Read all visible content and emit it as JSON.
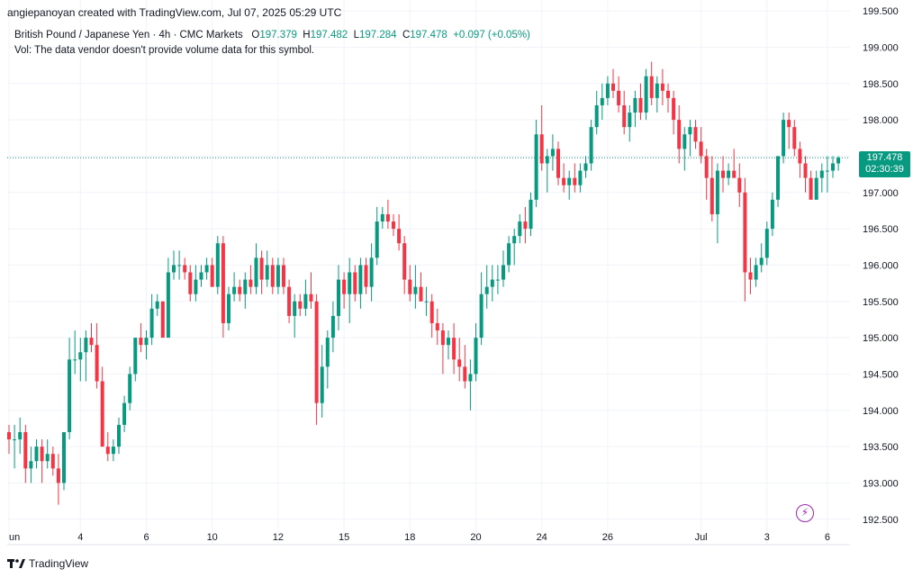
{
  "header": "angiepanoyan created with TradingView.com, Jul 07, 2025 05:29 UTC",
  "legend": {
    "symbol": "British Pound / Japanese Yen · 4h · CMC Markets",
    "open_label": "O",
    "open": "197.379",
    "high_label": "H",
    "high": "197.482",
    "low_label": "L",
    "low": "197.284",
    "close_label": "C",
    "close": "197.478",
    "change": "+0.097 (+0.05%)",
    "volume_note": "Vol: The data vendor doesn't provide volume data for this symbol."
  },
  "last_price": {
    "value": "197.478",
    "countdown": "02:30:39"
  },
  "brand": "TradingView",
  "colors": {
    "up": "#089981",
    "down": "#F23645",
    "grid": "#F0F3FA",
    "axis_text": "#131722"
  },
  "chart_data": {
    "type": "candlestick",
    "ylim": [
      192.15,
      199.65
    ],
    "y_ticks": [
      "192.500",
      "193.000",
      "193.500",
      "194.000",
      "194.500",
      "195.000",
      "195.500",
      "196.000",
      "196.500",
      "197.000",
      "197.500",
      "198.000",
      "198.500",
      "199.000",
      "199.500"
    ],
    "x_ticks": [
      {
        "label": "un",
        "i": 0
      },
      {
        "label": "4",
        "i": 13
      },
      {
        "label": "6",
        "i": 25
      },
      {
        "label": "10",
        "i": 37
      },
      {
        "label": "12",
        "i": 49
      },
      {
        "label": "15",
        "i": 61
      },
      {
        "label": "18",
        "i": 73
      },
      {
        "label": "20",
        "i": 85
      },
      {
        "label": "24",
        "i": 97
      },
      {
        "label": "26",
        "i": 109
      },
      {
        "label": "Jul",
        "i": 126
      },
      {
        "label": "3",
        "i": 138
      },
      {
        "label": "6",
        "i": 149
      }
    ],
    "ohlc": [
      [
        193.7,
        193.8,
        193.4,
        193.6
      ],
      [
        193.6,
        193.8,
        193.2,
        193.6
      ],
      [
        193.6,
        193.9,
        193.4,
        193.7
      ],
      [
        193.7,
        193.8,
        193.0,
        193.2
      ],
      [
        193.2,
        193.5,
        193.0,
        193.3
      ],
      [
        193.3,
        193.6,
        193.2,
        193.5
      ],
      [
        193.5,
        193.6,
        193.0,
        193.3
      ],
      [
        193.3,
        193.6,
        193.2,
        193.4
      ],
      [
        193.4,
        193.5,
        193.1,
        193.2
      ],
      [
        193.2,
        193.4,
        192.7,
        193.0
      ],
      [
        193.0,
        193.7,
        192.9,
        193.7
      ],
      [
        193.7,
        195.0,
        193.6,
        194.7
      ],
      [
        194.7,
        195.1,
        194.5,
        194.7
      ],
      [
        194.7,
        195.0,
        194.4,
        194.8
      ],
      [
        194.8,
        195.1,
        194.4,
        195.0
      ],
      [
        195.0,
        195.2,
        194.8,
        194.9
      ],
      [
        194.9,
        195.2,
        194.3,
        194.4
      ],
      [
        194.4,
        194.6,
        193.5,
        193.5
      ],
      [
        193.5,
        193.7,
        193.3,
        193.4
      ],
      [
        193.4,
        193.6,
        193.3,
        193.5
      ],
      [
        193.5,
        193.9,
        193.4,
        193.8
      ],
      [
        193.8,
        194.2,
        193.7,
        194.1
      ],
      [
        194.1,
        194.6,
        194.0,
        194.5
      ],
      [
        194.5,
        195.0,
        194.4,
        195.0
      ],
      [
        195.0,
        195.2,
        194.8,
        194.9
      ],
      [
        194.9,
        195.1,
        194.7,
        195.0
      ],
      [
        195.0,
        195.6,
        194.9,
        195.4
      ],
      [
        195.4,
        195.6,
        195.3,
        195.5
      ],
      [
        195.5,
        195.5,
        195.0,
        195.0
      ],
      [
        195.0,
        196.1,
        195.0,
        195.9
      ],
      [
        195.9,
        196.2,
        195.8,
        196.0
      ],
      [
        196.0,
        196.2,
        195.8,
        196.0
      ],
      [
        196.0,
        196.1,
        195.8,
        195.9
      ],
      [
        195.9,
        196.0,
        195.5,
        195.6
      ],
      [
        195.6,
        196.0,
        195.5,
        195.8
      ],
      [
        195.8,
        196.0,
        195.7,
        195.9
      ],
      [
        195.9,
        196.1,
        195.8,
        196.0
      ],
      [
        196.0,
        196.1,
        195.7,
        195.7
      ],
      [
        195.7,
        196.4,
        195.6,
        196.3
      ],
      [
        196.3,
        196.4,
        195.0,
        195.2
      ],
      [
        195.2,
        195.7,
        195.1,
        195.6
      ],
      [
        195.6,
        195.9,
        195.5,
        195.7
      ],
      [
        195.7,
        195.8,
        195.5,
        195.6
      ],
      [
        195.6,
        195.9,
        195.4,
        195.8
      ],
      [
        195.8,
        196.0,
        195.6,
        195.7
      ],
      [
        195.7,
        196.3,
        195.6,
        196.1
      ],
      [
        196.1,
        196.2,
        195.6,
        195.8
      ],
      [
        195.8,
        196.2,
        195.7,
        196.0
      ],
      [
        196.0,
        196.1,
        195.6,
        195.7
      ],
      [
        195.7,
        196.1,
        195.6,
        196.0
      ],
      [
        196.0,
        196.1,
        195.6,
        195.7
      ],
      [
        195.7,
        195.8,
        195.2,
        195.3
      ],
      [
        195.3,
        195.6,
        195.0,
        195.5
      ],
      [
        195.5,
        195.6,
        195.3,
        195.4
      ],
      [
        195.4,
        195.8,
        195.3,
        195.6
      ],
      [
        195.6,
        195.9,
        195.4,
        195.5
      ],
      [
        195.5,
        195.6,
        193.8,
        194.1
      ],
      [
        194.1,
        194.9,
        193.9,
        194.6
      ],
      [
        194.6,
        195.1,
        194.3,
        195.0
      ],
      [
        195.0,
        195.5,
        194.8,
        195.3
      ],
      [
        195.3,
        196.0,
        195.1,
        195.8
      ],
      [
        195.8,
        195.9,
        195.4,
        195.6
      ],
      [
        195.6,
        196.1,
        195.2,
        195.9
      ],
      [
        195.9,
        196.0,
        195.5,
        195.6
      ],
      [
        195.6,
        196.1,
        195.4,
        196.0
      ],
      [
        196.0,
        196.1,
        195.6,
        195.7
      ],
      [
        195.7,
        196.3,
        195.5,
        196.1
      ],
      [
        196.1,
        196.8,
        196.0,
        196.6
      ],
      [
        196.6,
        196.8,
        196.5,
        196.7
      ],
      [
        196.7,
        196.9,
        196.5,
        196.6
      ],
      [
        196.6,
        196.7,
        196.4,
        196.5
      ],
      [
        196.5,
        196.7,
        196.2,
        196.3
      ],
      [
        196.3,
        196.4,
        195.6,
        195.8
      ],
      [
        195.8,
        196.0,
        195.5,
        195.6
      ],
      [
        195.6,
        196.0,
        195.4,
        195.7
      ],
      [
        195.7,
        195.9,
        195.5,
        195.5
      ],
      [
        195.5,
        195.7,
        195.3,
        195.5
      ],
      [
        195.5,
        195.6,
        195.0,
        195.2
      ],
      [
        195.2,
        195.4,
        194.9,
        195.1
      ],
      [
        195.1,
        195.2,
        194.5,
        194.9
      ],
      [
        194.9,
        195.1,
        194.7,
        195.0
      ],
      [
        195.0,
        195.2,
        194.5,
        194.7
      ],
      [
        194.7,
        195.0,
        194.4,
        194.6
      ],
      [
        194.6,
        194.9,
        194.3,
        194.4
      ],
      [
        194.4,
        194.7,
        194.0,
        194.5
      ],
      [
        194.5,
        195.2,
        194.4,
        195.0
      ],
      [
        195.0,
        195.9,
        194.9,
        195.6
      ],
      [
        195.6,
        196.0,
        195.4,
        195.7
      ],
      [
        195.7,
        196.0,
        195.5,
        195.8
      ],
      [
        195.8,
        196.0,
        195.6,
        195.8
      ],
      [
        195.8,
        196.2,
        195.7,
        196.0
      ],
      [
        196.0,
        196.4,
        195.9,
        196.3
      ],
      [
        196.3,
        196.5,
        196.0,
        196.4
      ],
      [
        196.4,
        196.7,
        196.3,
        196.6
      ],
      [
        196.6,
        196.8,
        196.3,
        196.5
      ],
      [
        196.5,
        197.0,
        196.4,
        196.9
      ],
      [
        196.9,
        198.0,
        196.8,
        197.8
      ],
      [
        197.8,
        198.2,
        197.3,
        197.4
      ],
      [
        197.4,
        197.6,
        197.0,
        197.5
      ],
      [
        197.5,
        197.8,
        197.3,
        197.6
      ],
      [
        197.6,
        197.7,
        197.1,
        197.2
      ],
      [
        197.2,
        197.4,
        197.0,
        197.1
      ],
      [
        197.1,
        197.3,
        196.9,
        197.2
      ],
      [
        197.2,
        197.4,
        197.0,
        197.1
      ],
      [
        197.1,
        197.4,
        197.0,
        197.3
      ],
      [
        197.3,
        197.5,
        197.2,
        197.4
      ],
      [
        197.4,
        198.0,
        197.3,
        197.9
      ],
      [
        197.9,
        198.4,
        197.8,
        198.2
      ],
      [
        198.2,
        198.5,
        198.0,
        198.3
      ],
      [
        198.3,
        198.6,
        198.2,
        198.5
      ],
      [
        198.5,
        198.7,
        198.3,
        198.4
      ],
      [
        198.4,
        198.6,
        198.1,
        198.2
      ],
      [
        198.2,
        198.4,
        197.8,
        197.9
      ],
      [
        197.9,
        198.2,
        197.7,
        198.1
      ],
      [
        198.1,
        198.4,
        197.9,
        198.3
      ],
      [
        198.3,
        198.5,
        198.0,
        198.1
      ],
      [
        198.1,
        198.7,
        198.0,
        198.6
      ],
      [
        198.6,
        198.8,
        198.2,
        198.3
      ],
      [
        198.3,
        198.6,
        198.1,
        198.5
      ],
      [
        198.5,
        198.7,
        198.2,
        198.4
      ],
      [
        198.4,
        198.5,
        198.1,
        198.3
      ],
      [
        198.3,
        198.4,
        197.8,
        198.0
      ],
      [
        198.0,
        198.2,
        197.4,
        197.6
      ],
      [
        197.6,
        197.9,
        197.3,
        197.8
      ],
      [
        197.8,
        198.0,
        197.5,
        197.9
      ],
      [
        197.9,
        198.0,
        197.6,
        197.7
      ],
      [
        197.7,
        197.9,
        197.4,
        197.5
      ],
      [
        197.5,
        197.6,
        196.9,
        197.2
      ],
      [
        197.2,
        197.5,
        196.6,
        196.7
      ],
      [
        196.7,
        197.4,
        196.3,
        197.3
      ],
      [
        197.3,
        197.5,
        197.0,
        197.2
      ],
      [
        197.2,
        197.4,
        197.1,
        197.3
      ],
      [
        197.3,
        197.6,
        197.2,
        197.2
      ],
      [
        197.2,
        197.4,
        196.8,
        197.0
      ],
      [
        197.0,
        197.2,
        195.5,
        195.9
      ],
      [
        195.9,
        196.1,
        195.6,
        195.8
      ],
      [
        195.8,
        196.1,
        195.7,
        196.0
      ],
      [
        196.0,
        196.3,
        195.9,
        196.1
      ],
      [
        196.1,
        196.6,
        196.0,
        196.5
      ],
      [
        196.5,
        197.0,
        196.4,
        196.9
      ],
      [
        196.9,
        197.5,
        196.8,
        197.5
      ],
      [
        197.5,
        198.1,
        197.4,
        198.0
      ],
      [
        198.0,
        198.1,
        197.6,
        197.9
      ],
      [
        197.9,
        198.0,
        197.5,
        197.6
      ],
      [
        197.6,
        197.7,
        197.2,
        197.4
      ],
      [
        197.4,
        197.5,
        197.0,
        197.2
      ],
      [
        197.2,
        197.3,
        196.9,
        196.9
      ],
      [
        196.9,
        197.3,
        196.9,
        197.2
      ],
      [
        197.2,
        197.4,
        197.0,
        197.3
      ],
      [
        197.3,
        197.5,
        197.0,
        197.3
      ],
      [
        197.3,
        197.5,
        197.2,
        197.4
      ],
      [
        197.4,
        197.5,
        197.3,
        197.478
      ]
    ]
  }
}
